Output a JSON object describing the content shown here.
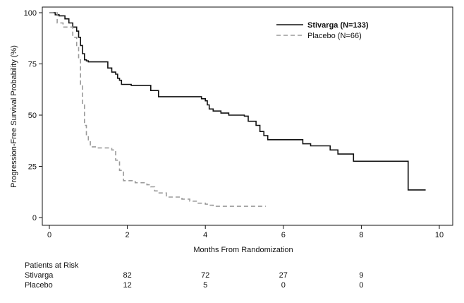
{
  "chart_data": {
    "type": "line",
    "ylabel": "Progression-Free Survival Probability (%)",
    "xlabel": "Months From Randomization",
    "xlim": [
      0,
      10
    ],
    "ylim": [
      0,
      100
    ],
    "x_ticks": [
      "0",
      "2",
      "4",
      "6",
      "8",
      "10"
    ],
    "y_ticks": [
      "0",
      "25",
      "50",
      "75",
      "100"
    ],
    "grid": false,
    "legend_position": "top-right",
    "series": [
      {
        "name": "Stivarga (N=133)",
        "color": "#111111",
        "style": "solid",
        "bold_label": true,
        "x": [
          0,
          0.15,
          0.25,
          0.4,
          0.5,
          0.6,
          0.7,
          0.75,
          0.8,
          0.85,
          0.9,
          0.95,
          1.0,
          1.05,
          1.1,
          1.5,
          1.6,
          1.7,
          1.75,
          1.8,
          1.85,
          2.0,
          2.1,
          2.6,
          2.8,
          3.8,
          3.9,
          4.0,
          4.05,
          4.1,
          4.2,
          4.4,
          4.6,
          5.0,
          5.1,
          5.3,
          5.4,
          5.5,
          5.6,
          6.5,
          6.7,
          7.2,
          7.4,
          7.8,
          9.2,
          9.65
        ],
        "y": [
          100,
          99,
          98.5,
          97,
          95,
          93,
          91,
          88,
          84,
          80,
          77,
          76.5,
          76,
          76,
          76,
          73,
          71,
          70,
          68,
          67,
          65,
          65,
          64.5,
          62,
          59,
          59,
          58,
          57,
          55,
          53,
          52,
          51,
          50,
          49.5,
          47,
          45,
          42,
          40,
          38,
          36,
          35,
          33,
          31,
          27.5,
          13.5,
          13.5
        ]
      },
      {
        "name": "Placebo (N=66)",
        "color": "#9a9a9a",
        "style": "dashed",
        "bold_label": false,
        "x": [
          0,
          0.2,
          0.35,
          0.6,
          0.7,
          0.75,
          0.8,
          0.85,
          0.9,
          0.95,
          1.0,
          1.05,
          1.1,
          1.2,
          1.6,
          1.7,
          1.8,
          1.9,
          2.2,
          2.5,
          2.6,
          2.7,
          2.8,
          3.0,
          3.4,
          3.6,
          3.8,
          4.0,
          4.1,
          4.2,
          5.5,
          5.55
        ],
        "y": [
          100,
          95,
          93,
          88,
          83,
          77,
          65,
          55,
          45,
          40,
          37,
          35,
          34.5,
          34,
          33,
          28,
          23,
          18,
          17,
          16,
          15,
          13,
          12,
          10,
          9,
          8,
          7,
          6.5,
          6,
          5.5,
          5.5,
          5.5
        ]
      }
    ]
  },
  "risk_table": {
    "title": "Patients at Risk",
    "columns_at": [
      2,
      4,
      6,
      8
    ],
    "rows": [
      {
        "label": "Stivarga",
        "values": [
          "82",
          "72",
          "27",
          "9"
        ]
      },
      {
        "label": "Placebo",
        "values": [
          "12",
          "5",
          "0",
          "0"
        ]
      }
    ]
  }
}
